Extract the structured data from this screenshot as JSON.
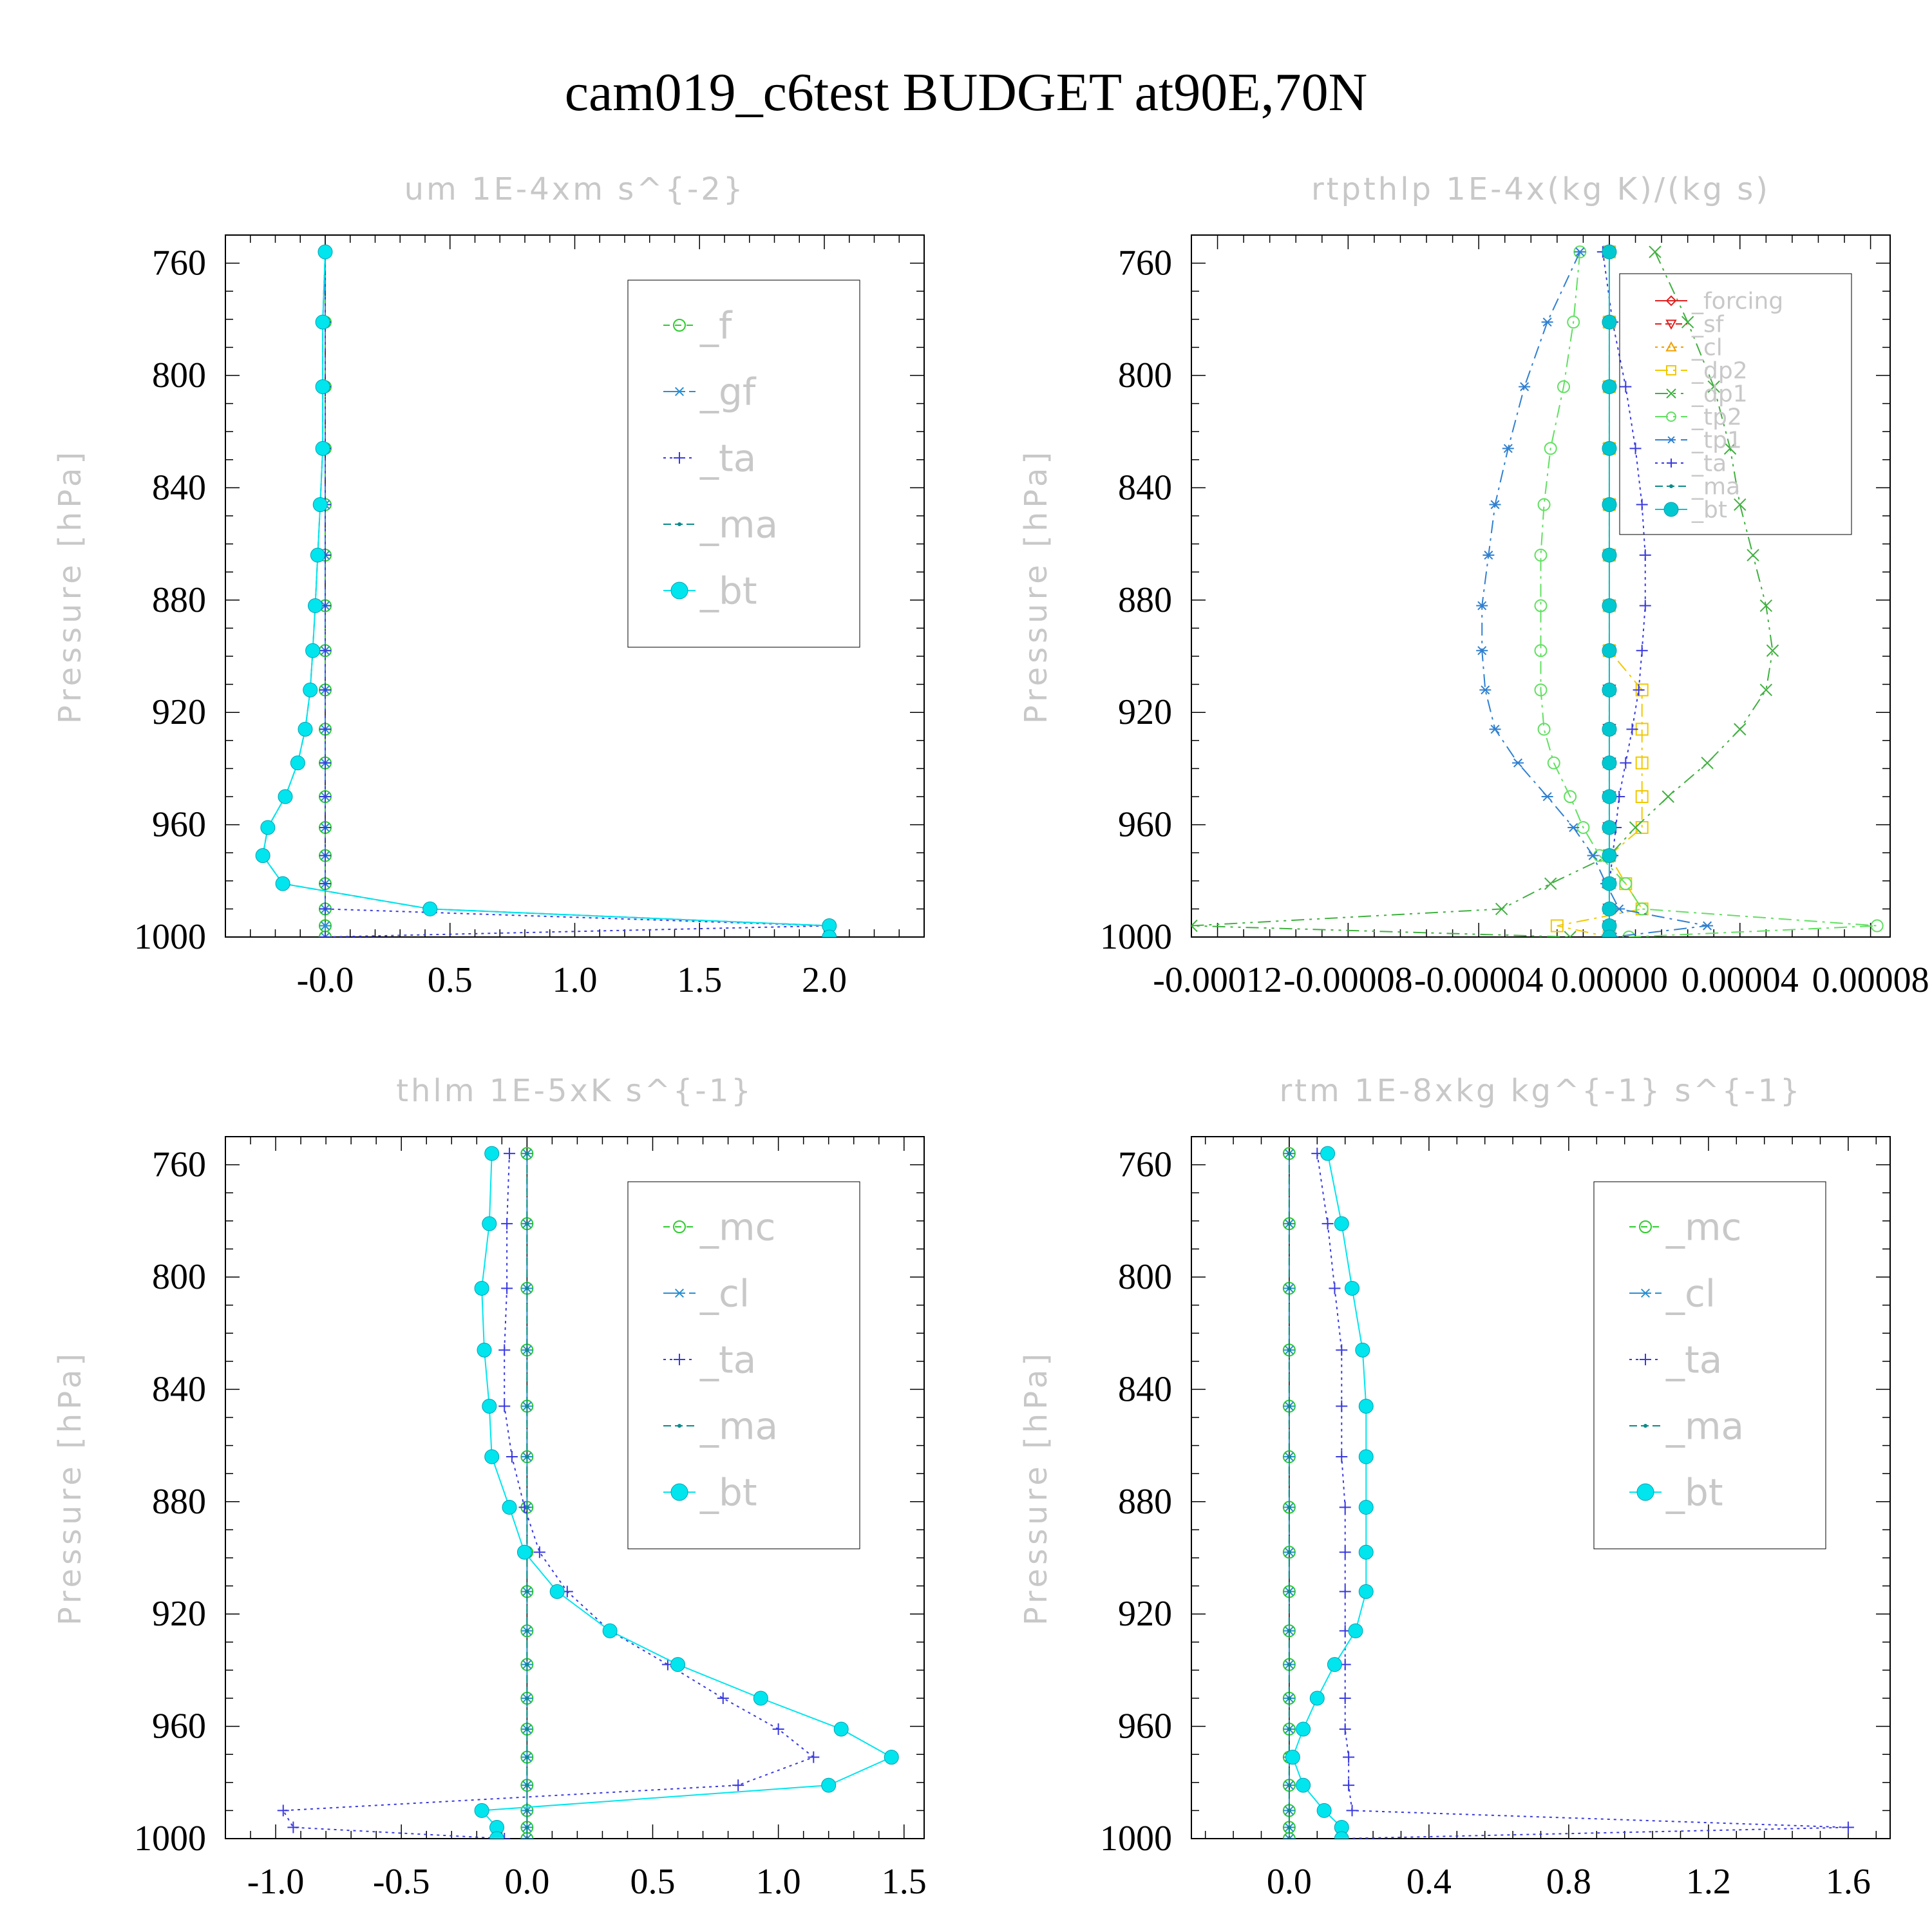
{
  "title": "cam019_c6test  BUDGET at90E,70N",
  "chart_data": [
    {
      "type": "line",
      "title": "um   1E-4xm s^{-2}",
      "ylabel": "Pressure [hPa]",
      "ylim": [
        1000,
        750
      ],
      "yticks": [
        760,
        800,
        840,
        880,
        920,
        960,
        1000
      ],
      "xlim": [
        -0.4,
        2.4
      ],
      "xticks": [
        -0.0,
        0.5,
        1.0,
        1.5,
        2.0
      ],
      "xtick_labels": [
        "-0.0",
        "0.5",
        "1.0",
        "1.5",
        "2.0"
      ],
      "legend_font": 58,
      "legend_pos": "upper-right",
      "pressure": [
        756,
        781,
        804,
        826,
        846,
        864,
        882,
        898,
        912,
        926,
        938,
        950,
        961,
        971,
        981,
        990,
        996,
        1000
      ],
      "series": [
        {
          "name": "_f",
          "color": "#2ecc2e",
          "marker": "circle",
          "dash": "10,8",
          "values": [
            0,
            0,
            0,
            0,
            0,
            0,
            0,
            0,
            0,
            0,
            0,
            0,
            0,
            0,
            0,
            0,
            0,
            0
          ]
        },
        {
          "name": "_gf",
          "color": "#2a8fd0",
          "marker": "star",
          "dash": "20,8,4,8",
          "values": [
            0,
            0,
            0,
            0,
            0,
            0,
            0,
            0,
            0,
            0,
            0,
            0,
            0,
            0,
            0,
            0,
            0,
            0
          ]
        },
        {
          "name": "_ta",
          "color": "#3a3ae0",
          "marker": "plus",
          "dash": "4,6",
          "values": [
            0,
            0,
            0,
            0,
            0,
            0,
            0,
            0,
            0,
            0,
            0,
            0,
            0,
            0,
            0,
            0,
            2.02,
            0
          ]
        },
        {
          "name": "_ma",
          "color": "#0a8a8a",
          "marker": "dot",
          "dash": "12,6",
          "values": [
            0,
            -0.01,
            -0.01,
            -0.01,
            -0.02,
            -0.03,
            -0.04,
            -0.05,
            -0.06,
            -0.08,
            -0.11,
            -0.16,
            -0.23,
            -0.25,
            -0.17,
            0.42,
            2.02,
            2.02
          ]
        },
        {
          "name": "_bt",
          "color": "#00e5ee",
          "marker": "filled",
          "dash": "",
          "values": [
            0,
            -0.01,
            -0.01,
            -0.01,
            -0.02,
            -0.03,
            -0.04,
            -0.05,
            -0.06,
            -0.08,
            -0.11,
            -0.16,
            -0.23,
            -0.25,
            -0.17,
            0.42,
            2.02,
            2.02
          ]
        }
      ]
    },
    {
      "type": "line",
      "title": "rtpthlp   1E-4x(kg K)/(kg s)",
      "ylabel": "Pressure [hPa]",
      "ylim": [
        1000,
        750
      ],
      "yticks": [
        760,
        800,
        840,
        880,
        920,
        960,
        1000
      ],
      "xlim": [
        -0.000128,
        8.6e-05
      ],
      "xticks": [
        -0.00012,
        -8e-05,
        -4e-05,
        0.0,
        4e-05,
        8e-05
      ],
      "xtick_labels": [
        "-0.00012",
        "-0.00008",
        "-0.00004",
        "0.00000",
        "0.00004",
        "0.00008"
      ],
      "legend_font": 36,
      "legend_pos": "upper-right",
      "pressure": [
        756,
        781,
        804,
        826,
        846,
        864,
        882,
        898,
        912,
        926,
        938,
        950,
        961,
        971,
        981,
        990,
        996,
        1000
      ],
      "series": [
        {
          "name": "_forcing",
          "color": "#e02020",
          "marker": "diamond",
          "dash": "",
          "values": [
            0,
            0,
            0,
            0,
            0,
            0,
            0,
            0,
            0,
            0,
            0,
            0,
            0,
            0,
            0,
            0,
            0,
            0
          ]
        },
        {
          "name": "_sf",
          "color": "#e02020",
          "marker": "tri-down",
          "dash": "10,6",
          "values": [
            0,
            0,
            0,
            0,
            0,
            0,
            0,
            0,
            0,
            0,
            0,
            0,
            0,
            0,
            0,
            0,
            0,
            0
          ]
        },
        {
          "name": "_cl",
          "color": "#f0a000",
          "marker": "tri-up",
          "dash": "4,6",
          "values": [
            0,
            0,
            0,
            0,
            0,
            0,
            0,
            0,
            0,
            0,
            0,
            0,
            0,
            0,
            0,
            0,
            0,
            0
          ]
        },
        {
          "name": "_dp2",
          "color": "#f0c800",
          "marker": "square",
          "dash": "20,8,4,8",
          "values": [
            0,
            0,
            0,
            0,
            0,
            0,
            0,
            0,
            1e-05,
            1e-05,
            1e-05,
            1e-05,
            1e-05,
            0,
            5e-06,
            1e-05,
            -1.6e-05,
            0
          ]
        },
        {
          "name": "_dp1",
          "color": "#40b040",
          "marker": "x",
          "dash": "20,8,4,8,4,8",
          "values": [
            1.4e-05,
            2.4e-05,
            3.2e-05,
            3.7e-05,
            4e-05,
            4.4e-05,
            4.8e-05,
            5e-05,
            4.8e-05,
            4e-05,
            3e-05,
            1.8e-05,
            8e-06,
            0,
            -1.8e-05,
            -3.3e-05,
            -0.000128,
            -1.2e-05
          ]
        },
        {
          "name": "_tp2",
          "color": "#60e060",
          "marker": "circle",
          "dash": "20,8,4,8",
          "values": [
            -9e-06,
            -1.1e-05,
            -1.4e-05,
            -1.8e-05,
            -2e-05,
            -2.1e-05,
            -2.1e-05,
            -2.1e-05,
            -2.1e-05,
            -2e-05,
            -1.7e-05,
            -1.2e-05,
            -8e-06,
            -3e-06,
            5e-06,
            1e-05,
            8.2e-05,
            6e-06
          ]
        },
        {
          "name": "_tp1",
          "color": "#3080d0",
          "marker": "star",
          "dash": "20,8,4,8",
          "values": [
            -9e-06,
            -1.9e-05,
            -2.6e-05,
            -3.1e-05,
            -3.5e-05,
            -3.7e-05,
            -3.9e-05,
            -3.9e-05,
            -3.8e-05,
            -3.5e-05,
            -2.8e-05,
            -1.9e-05,
            -1.1e-05,
            -5e-06,
            -1e-06,
            3e-06,
            3e-05,
            1e-06
          ]
        },
        {
          "name": "_ta",
          "color": "#3a3ae0",
          "marker": "plus",
          "dash": "4,6",
          "values": [
            -2e-06,
            1e-06,
            5e-06,
            8e-06,
            1e-05,
            1.1e-05,
            1.1e-05,
            1e-05,
            9e-06,
            7e-06,
            5e-06,
            3e-06,
            2e-06,
            1e-06,
            0,
            0,
            0,
            0
          ]
        },
        {
          "name": "_ma",
          "color": "#0a8a8a",
          "marker": "dot",
          "dash": "12,6",
          "values": [
            0,
            0,
            0,
            0,
            0,
            0,
            0,
            0,
            0,
            0,
            0,
            0,
            0,
            0,
            0,
            0,
            0,
            0
          ]
        },
        {
          "name": "_bt",
          "color": "#00c8d0",
          "marker": "filled",
          "dash": "",
          "values": [
            0,
            0,
            0,
            0,
            0,
            0,
            0,
            0,
            0,
            0,
            0,
            0,
            0,
            0,
            0,
            0,
            0,
            0
          ]
        }
      ]
    },
    {
      "type": "line",
      "title": "thlm   1E-5xK s^{-1}",
      "ylabel": "Pressure [hPa]",
      "ylim": [
        1000,
        750
      ],
      "yticks": [
        760,
        800,
        840,
        880,
        920,
        960,
        1000
      ],
      "xlim": [
        -1.2,
        1.58
      ],
      "xticks": [
        -1.0,
        -0.5,
        0.0,
        0.5,
        1.0,
        1.5
      ],
      "xtick_labels": [
        "-1.0",
        "-0.5",
        "0.0",
        "0.5",
        "1.0",
        "1.5"
      ],
      "legend_font": 58,
      "legend_pos": "upper-right",
      "pressure": [
        756,
        781,
        804,
        826,
        846,
        864,
        882,
        898,
        912,
        926,
        938,
        950,
        961,
        971,
        981,
        990,
        996,
        1000
      ],
      "series": [
        {
          "name": "_mc",
          "color": "#2ecc2e",
          "marker": "circle",
          "dash": "10,8",
          "values": [
            0,
            0,
            0,
            0,
            0,
            0,
            0,
            0,
            0,
            0,
            0,
            0,
            0,
            0,
            0,
            0,
            0,
            0
          ]
        },
        {
          "name": "_cl",
          "color": "#2a8fd0",
          "marker": "star",
          "dash": "20,8,4,8",
          "values": [
            0,
            0,
            0,
            0,
            0,
            0,
            0,
            0,
            0,
            0,
            0,
            0,
            0,
            0,
            0,
            0,
            0,
            0
          ]
        },
        {
          "name": "_ta",
          "color": "#3a3ae0",
          "marker": "plus",
          "dash": "4,6",
          "values": [
            -0.07,
            -0.08,
            -0.08,
            -0.09,
            -0.09,
            -0.06,
            -0.01,
            0.05,
            0.16,
            0.33,
            0.56,
            0.78,
            1.0,
            1.14,
            0.84,
            -0.97,
            -0.93,
            -0.09
          ]
        },
        {
          "name": "_ma",
          "color": "#0a8a8a",
          "marker": "dot",
          "dash": "12,6",
          "values": [
            0,
            0,
            0,
            0,
            0,
            0,
            0,
            0,
            0,
            0,
            0,
            0,
            0,
            0,
            0,
            0,
            0,
            0
          ]
        },
        {
          "name": "_bt",
          "color": "#00e5ee",
          "marker": "filled",
          "dash": "",
          "values": [
            -0.14,
            -0.15,
            -0.18,
            -0.17,
            -0.15,
            -0.14,
            -0.07,
            -0.01,
            0.12,
            0.33,
            0.6,
            0.93,
            1.25,
            1.45,
            1.2,
            -0.18,
            -0.12,
            -0.12
          ]
        }
      ]
    },
    {
      "type": "line",
      "title": "rtm   1E-8xkg kg^{-1} s^{-1}",
      "ylabel": "Pressure [hPa]",
      "ylim": [
        1000,
        750
      ],
      "yticks": [
        760,
        800,
        840,
        880,
        920,
        960,
        1000
      ],
      "xlim": [
        -0.28,
        1.72
      ],
      "xticks": [
        0.0,
        0.4,
        0.8,
        1.2,
        1.6
      ],
      "xtick_labels": [
        "0.0",
        "0.4",
        "0.8",
        "1.2",
        "1.6"
      ],
      "legend_font": 58,
      "legend_pos": "upper-right",
      "pressure": [
        756,
        781,
        804,
        826,
        846,
        864,
        882,
        898,
        912,
        926,
        938,
        950,
        961,
        971,
        981,
        990,
        996,
        1000
      ],
      "series": [
        {
          "name": "_mc",
          "color": "#2ecc2e",
          "marker": "circle",
          "dash": "10,8",
          "values": [
            0,
            0,
            0,
            0,
            0,
            0,
            0,
            0,
            0,
            0,
            0,
            0,
            0,
            0,
            0,
            0,
            0,
            0
          ]
        },
        {
          "name": "_cl",
          "color": "#2a8fd0",
          "marker": "star",
          "dash": "20,8,4,8",
          "values": [
            0,
            0,
            0,
            0,
            0,
            0,
            0,
            0,
            0,
            0,
            0,
            0,
            0,
            0,
            0,
            0,
            0,
            0
          ]
        },
        {
          "name": "_ta",
          "color": "#3a3ae0",
          "marker": "plus",
          "dash": "4,6",
          "values": [
            0.08,
            0.11,
            0.13,
            0.15,
            0.15,
            0.15,
            0.16,
            0.16,
            0.16,
            0.16,
            0.16,
            0.16,
            0.16,
            0.17,
            0.17,
            0.18,
            1.6,
            0.15
          ]
        },
        {
          "name": "_ma",
          "color": "#0a8a8a",
          "marker": "dot",
          "dash": "12,6",
          "values": [
            0,
            0,
            0,
            0,
            0,
            0,
            0,
            0,
            0,
            0,
            0,
            0,
            0,
            0,
            0,
            0,
            0,
            0
          ]
        },
        {
          "name": "_bt",
          "color": "#00e5ee",
          "marker": "filled",
          "dash": "",
          "values": [
            0.11,
            0.15,
            0.18,
            0.21,
            0.22,
            0.22,
            0.22,
            0.22,
            0.22,
            0.19,
            0.13,
            0.08,
            0.04,
            0.01,
            0.04,
            0.1,
            0.15,
            0.15
          ]
        }
      ]
    }
  ]
}
